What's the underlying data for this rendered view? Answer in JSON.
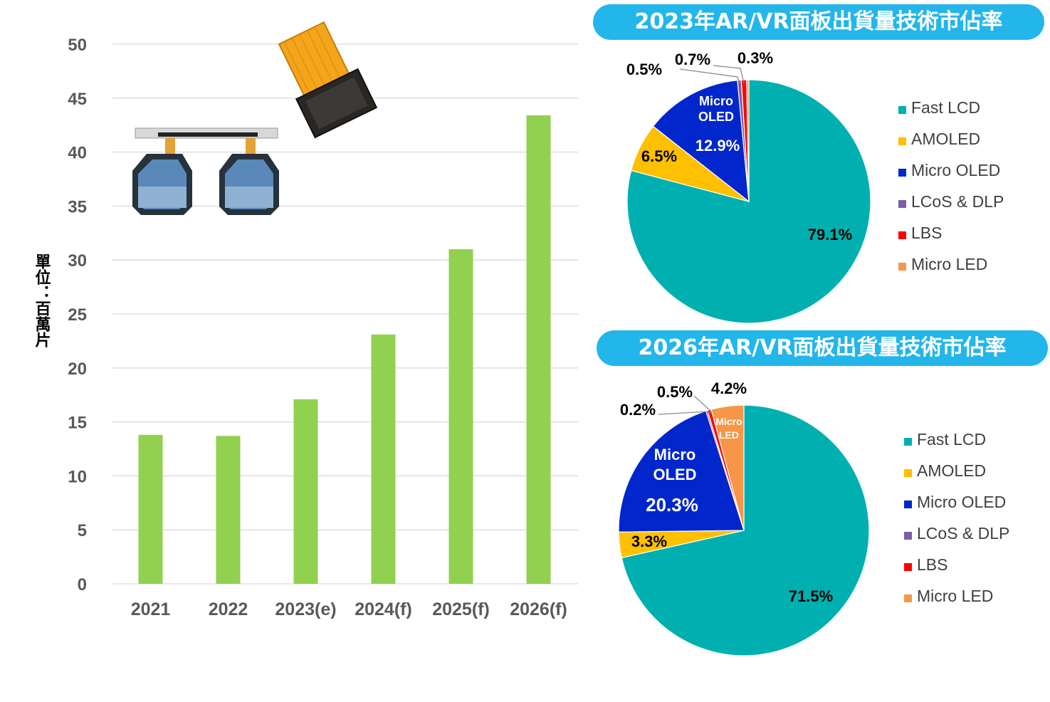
{
  "chart_data": [
    {
      "type": "bar",
      "categories": [
        "2021",
        "2022",
        "2023(e)",
        "2024(f)",
        "2025(f)",
        "2026(f)"
      ],
      "values": [
        13.8,
        13.7,
        17.1,
        23.1,
        31.0,
        43.4
      ],
      "ylabel": "單位：百萬片",
      "ylim": [
        0,
        50
      ],
      "yticks": [
        "0",
        "5",
        "10",
        "15",
        "20",
        "25",
        "30",
        "35",
        "40",
        "45",
        "50"
      ],
      "grid": true,
      "bar_color": "#92d050"
    },
    {
      "type": "pie",
      "title": "2023年AR/VR面板出貨量技術市佔率",
      "slices": [
        {
          "name": "Fast LCD",
          "value": 79.1,
          "label": "79.1%",
          "color": "#00b0b0"
        },
        {
          "name": "AMOLED",
          "value": 6.5,
          "label": "6.5%",
          "color": "#ffc000"
        },
        {
          "name": "Micro OLED",
          "value": 12.9,
          "label": "12.9%",
          "color": "#0026cc",
          "inner_label": "Micro OLED"
        },
        {
          "name": "LCoS & DLP",
          "value": 0.5,
          "label": "0.5%",
          "color": "#7b5ea7"
        },
        {
          "name": "LBS",
          "value": 0.7,
          "label": "0.7%",
          "color": "#ff0000"
        },
        {
          "name": "Micro LED",
          "value": 0.3,
          "label": "0.3%",
          "color": "#f79646"
        }
      ],
      "legend": [
        "Fast LCD",
        "AMOLED",
        "Micro OLED",
        "LCoS & DLP",
        "LBS",
        "Micro LED"
      ],
      "legend_position": "right"
    },
    {
      "type": "pie",
      "title": "2026年AR/VR面板出貨量技術市佔率",
      "slices": [
        {
          "name": "Fast LCD",
          "value": 71.5,
          "label": "71.5%",
          "color": "#00b0b0"
        },
        {
          "name": "AMOLED",
          "value": 3.3,
          "label": "3.3%",
          "color": "#ffc000"
        },
        {
          "name": "Micro OLED",
          "value": 20.3,
          "label": "20.3%",
          "color": "#0026cc",
          "inner_label": "Micro OLED"
        },
        {
          "name": "LCoS & DLP",
          "value": 0.2,
          "label": "0.2%",
          "color": "#7b5ea7"
        },
        {
          "name": "LBS",
          "value": 0.5,
          "label": "0.5%",
          "color": "#ff0000"
        },
        {
          "name": "Micro LED",
          "value": 4.2,
          "label": "4.2%",
          "color": "#f79646",
          "inner_label": "Micro LED"
        }
      ],
      "legend": [
        "Fast LCD",
        "AMOLED",
        "Micro OLED",
        "LCoS & DLP",
        "LBS",
        "Micro LED"
      ],
      "legend_position": "right"
    }
  ],
  "images": {
    "display_module_photo": "micro-oled-module-with-flex-cable",
    "dual_lens_panel_photo": "dual-lcd-vr-panels"
  },
  "colors": {
    "banner": "#23b6ea",
    "grid": "#d9d9d9",
    "tick_text": "#595959"
  }
}
